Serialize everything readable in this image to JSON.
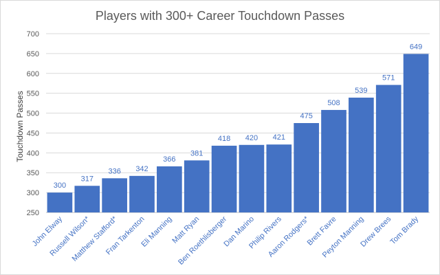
{
  "chart_data": {
    "type": "bar",
    "title": "Players with 300+ Career Touchdown Passes",
    "xlabel": "",
    "ylabel": "Touchdown Passes",
    "ylim": [
      250,
      700
    ],
    "yticks": [
      250,
      300,
      350,
      400,
      450,
      500,
      550,
      600,
      650,
      700
    ],
    "grid": true,
    "legend": "none",
    "categories": [
      "John Elway",
      "Russell Wilson*",
      "Matthew Stafford*",
      "Fran Tarkenton",
      "Eli Manning",
      "Matt Ryan",
      "Ben Roethlisberger",
      "Dan Marino",
      "Philip Rivers",
      "Aaron Rodgers*",
      "Brett Favre",
      "Peyton Manning",
      "Drew Brees",
      "Tom Brady"
    ],
    "values": [
      300,
      317,
      336,
      342,
      366,
      381,
      418,
      420,
      421,
      475,
      508,
      539,
      571,
      649
    ],
    "colors": {
      "bar": "#4472c4",
      "label": "#4472c4",
      "grid": "#d9d9d9"
    }
  }
}
